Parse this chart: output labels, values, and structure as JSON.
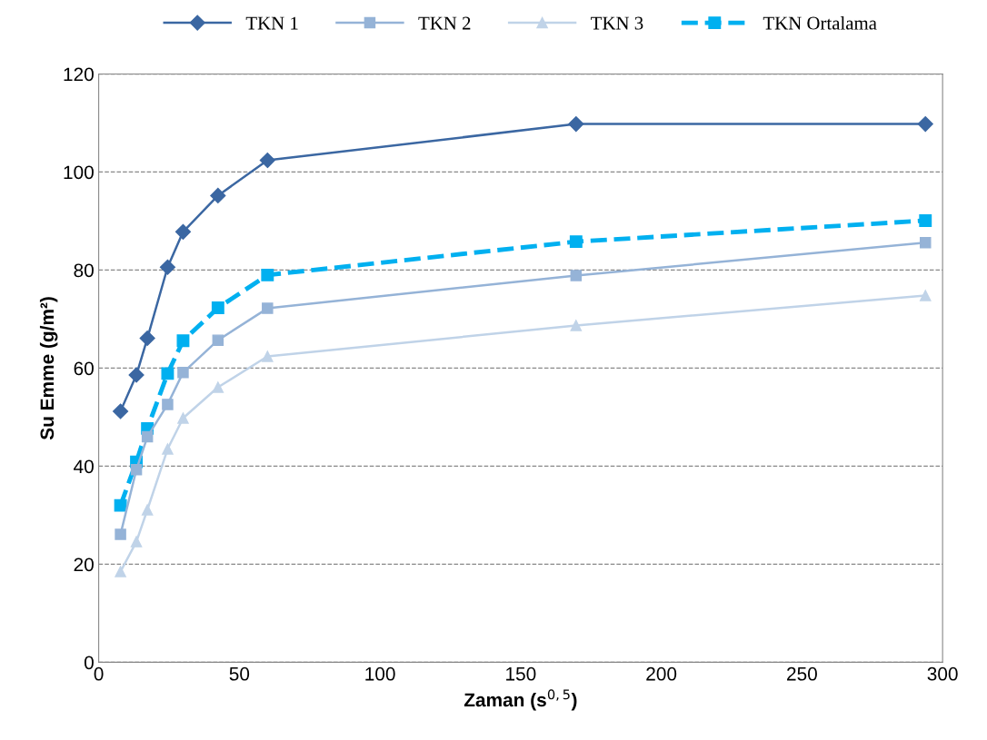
{
  "chart_data": {
    "type": "line",
    "xlabel": "Zaman (s$^{0,5}$)",
    "ylabel": "Su Emme (g/m²)",
    "xlim": [
      0,
      300
    ],
    "xticks": [
      0,
      50,
      100,
      150,
      200,
      250,
      300
    ],
    "ylim": [
      0,
      120
    ],
    "yticks": [
      0,
      20,
      40,
      60,
      80,
      100,
      120
    ],
    "grid": "y",
    "legend": "top",
    "x": [
      7.75,
      13.4,
      17.3,
      24.5,
      30,
      42.4,
      60,
      169.7,
      293.9
    ],
    "series": [
      {
        "name": "TKN 1",
        "color": "#3b67a2",
        "marker": "diamond",
        "line_style": "solid",
        "values": [
          51.2,
          58.6,
          66.1,
          80.6,
          87.8,
          95.2,
          102.4,
          109.8,
          109.8
        ]
      },
      {
        "name": "TKN 2",
        "color": "#95b3d7",
        "marker": "square",
        "line_style": "solid",
        "values": [
          26.1,
          39.3,
          46,
          52.6,
          59.1,
          65.7,
          72.2,
          78.9,
          85.6
        ]
      },
      {
        "name": "TKN 3",
        "color": "#c0d3e8",
        "marker": "triangle",
        "line_style": "solid",
        "values": [
          18.5,
          24.6,
          31.1,
          43.5,
          49.8,
          56.1,
          62.4,
          68.7,
          74.8
        ]
      },
      {
        "name": "TKN Ortalama",
        "color": "#00b0f0",
        "marker": "square",
        "line_style": "dashed",
        "values": [
          32,
          40.9,
          47.7,
          58.9,
          65.6,
          72.3,
          79.0,
          85.8,
          90.1
        ]
      }
    ]
  }
}
